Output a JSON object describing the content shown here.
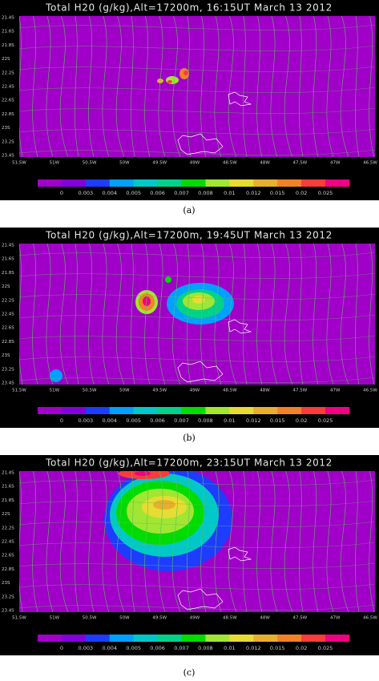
{
  "panels": [
    {
      "title": "Total H20 (g/kg),Alt=17200m, 16:15UT March 13 2012",
      "caption": "(a)"
    },
    {
      "title": "Total H20 (g/kg),Alt=17200m, 19:45UT March 13 2012",
      "caption": "(b)"
    },
    {
      "title": "Total H20 (g/kg),Alt=17200m, 23:15UT March 13 2012",
      "caption": "(c)"
    }
  ],
  "lat_labels": [
    "21.4S",
    "21.6S",
    "21.8S",
    "22S",
    "22.2S",
    "22.4S",
    "22.6S",
    "22.8S",
    "23S",
    "23.2S",
    "23.4S"
  ],
  "lon_labels": [
    "51.5W",
    "51W",
    "50.5W",
    "50W",
    "49.5W",
    "49W",
    "48.5W",
    "48W",
    "47.5W",
    "47W",
    "46.5W"
  ],
  "colorbar": {
    "labels": [
      "0",
      "0.003",
      "0.004",
      "0.005",
      "0.006",
      "0.007",
      "0.008",
      "0.01",
      "0.012",
      "0.015",
      "0.02",
      "0.025"
    ],
    "colors": [
      "#a000c8",
      "#8200dc",
      "#1e3cff",
      "#00a0ff",
      "#00c8c8",
      "#00d28c",
      "#00dc00",
      "#a0e632",
      "#e6dc32",
      "#e6af2d",
      "#f08228",
      "#fa3c3c",
      "#f00082"
    ]
  }
}
